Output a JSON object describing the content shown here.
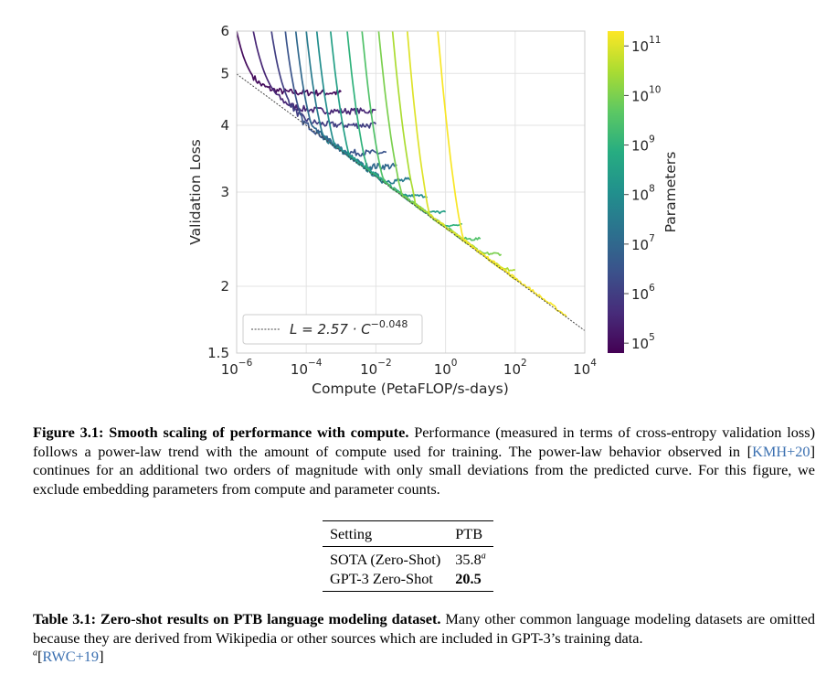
{
  "chart_data": {
    "type": "line",
    "xscale": "log",
    "yscale": "log",
    "xlabel": "Compute (PetaFLOP/s-days)",
    "ylabel": "Validation Loss",
    "xlim": [
      1e-06,
      10000
    ],
    "ylim": [
      1.5,
      6
    ],
    "xticks": [
      {
        "base": "10",
        "exp": "−6"
      },
      {
        "base": "10",
        "exp": "−4"
      },
      {
        "base": "10",
        "exp": "−2"
      },
      {
        "base": "10",
        "exp": "0"
      },
      {
        "base": "10",
        "exp": "2"
      },
      {
        "base": "10",
        "exp": "4"
      }
    ],
    "xtick_values": [
      1e-06,
      0.0001,
      0.01,
      1,
      100,
      10000
    ],
    "yticks": [
      "1.5",
      "2",
      "3",
      "4",
      "5",
      "6"
    ],
    "ytick_values": [
      1.5,
      2,
      3,
      4,
      5,
      6
    ],
    "grid": true,
    "legend_label_prefix": "L = 2.57 · C",
    "legend_label_exp": "−0.048",
    "legend_placement": "lower-left",
    "fit": {
      "a": 2.57,
      "b": -0.048,
      "x_range": [
        1e-06,
        10000
      ]
    },
    "colorbar": {
      "label": "Parameters",
      "ticks": [
        {
          "base": "10",
          "exp": "5"
        },
        {
          "base": "10",
          "exp": "6"
        },
        {
          "base": "10",
          "exp": "7"
        },
        {
          "base": "10",
          "exp": "8"
        },
        {
          "base": "10",
          "exp": "9"
        },
        {
          "base": "10",
          "exp": "10"
        },
        {
          "base": "10",
          "exp": "11"
        }
      ],
      "tick_values": [
        5,
        6,
        7,
        8,
        9,
        10,
        11
      ],
      "range": [
        4.8,
        11.3
      ],
      "colormap": [
        "#440154",
        "#472c7a",
        "#3b518b",
        "#2c718e",
        "#21908d",
        "#27ad81",
        "#5cc863",
        "#aadc32",
        "#fde725"
      ]
    },
    "series": [
      {
        "log10_params": 5.0,
        "x0": 1e-06,
        "x_end": 0.001,
        "y_start": 6.0,
        "plateau": 4.6
      },
      {
        "log10_params": 5.5,
        "x0": 3e-06,
        "x_end": 0.01,
        "y_start": 6.0,
        "plateau": 4.25
      },
      {
        "log10_params": 6.0,
        "x0": 1e-05,
        "x_end": 0.01,
        "y_start": 6.0,
        "plateau": 4.0
      },
      {
        "log10_params": 6.5,
        "x0": 2.5e-05,
        "x_end": 0.02,
        "y_start": 6.0,
        "plateau": 3.55
      },
      {
        "log10_params": 7.0,
        "x0": 5e-05,
        "x_end": 0.04,
        "y_start": 6.0,
        "plateau": 3.35
      },
      {
        "log10_params": 7.5,
        "x0": 0.0001,
        "x_end": 0.1,
        "y_start": 6.0,
        "plateau": 3.15
      },
      {
        "log10_params": 8.0,
        "x0": 0.0002,
        "x_end": 0.3,
        "y_start": 6.0,
        "plateau": 2.95
      },
      {
        "log10_params": 8.5,
        "x0": 0.0005,
        "x_end": 1.0,
        "y_start": 6.0,
        "plateau": 2.75
      },
      {
        "log10_params": 9.0,
        "x0": 0.0015,
        "x_end": 3.0,
        "y_start": 6.0,
        "plateau": 2.6
      },
      {
        "log10_params": 9.5,
        "x0": 0.004,
        "x_end": 10.0,
        "y_start": 6.0,
        "plateau": 2.45
      },
      {
        "log10_params": 10.0,
        "x0": 0.012,
        "x_end": 40.0,
        "y_start": 6.0,
        "plateau": 2.3
      },
      {
        "log10_params": 10.5,
        "x0": 0.03,
        "x_end": 100.0,
        "y_start": 6.0,
        "plateau": 2.15
      },
      {
        "log10_params": 11.0,
        "x0": 0.08,
        "x_end": 150.0,
        "y_start": 6.0,
        "plateau": 2.05
      },
      {
        "log10_params": 11.25,
        "x0": 0.6,
        "x_end": 3000.0,
        "y_start": 6.0,
        "plateau": 1.7
      }
    ]
  },
  "figure_caption": {
    "label": "Figure 3.1: Smooth scaling of performance with compute.",
    "text_1": " Performance (measured in terms of cross-entropy validation loss) follows a power-law trend with the amount of compute used for training. The power-law behavior observed in [",
    "cite": "KMH+20",
    "text_2": "] continues for an additional two orders of magnitude with only small deviations from the predicted curve. For this figure, we exclude embedding parameters from compute and parameter counts."
  },
  "table": {
    "headers": [
      "Setting",
      "PTB"
    ],
    "rows": [
      {
        "setting": "SOTA (Zero-Shot)",
        "value": "35.8",
        "note": "a"
      },
      {
        "setting": "GPT-3 Zero-Shot",
        "value": "20.5"
      }
    ]
  },
  "table_caption": {
    "label": "Table 3.1: Zero-shot results on PTB language modeling dataset.",
    "text": " Many other common language modeling datasets are omitted because they are derived from Wikipedia or other sources which are included in GPT-3’s training data.",
    "footnote_mark": "a",
    "footnote_cite": "RWC+19"
  }
}
